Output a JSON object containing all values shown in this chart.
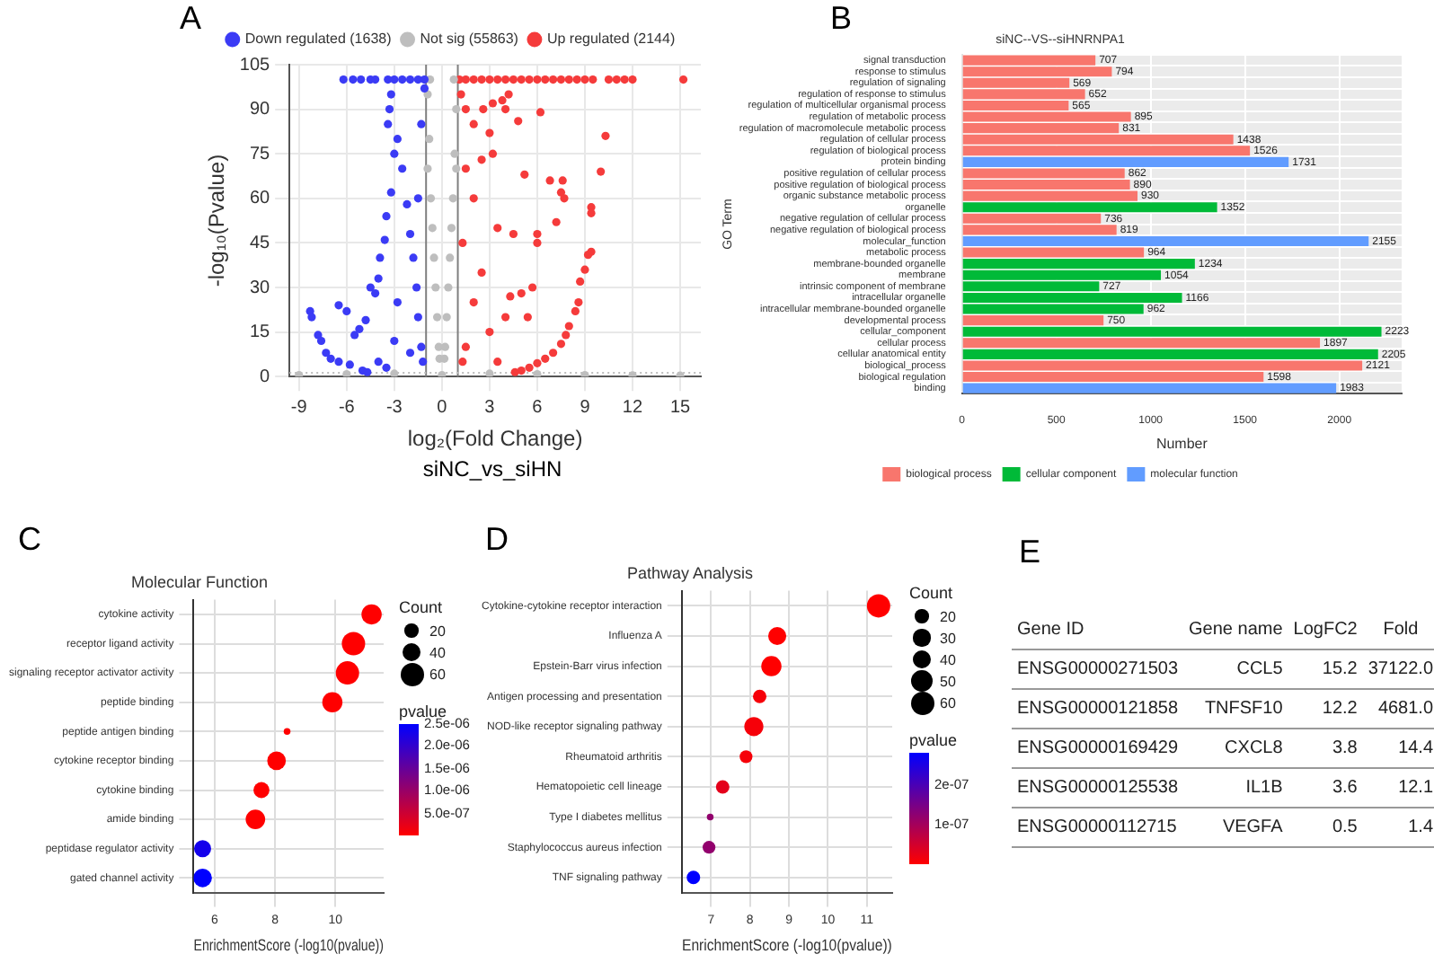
{
  "chart_data": [
    {
      "type": "scatter",
      "annotations": [
        "A",
        "siNC_vs_siHN"
      ],
      "xlabel": "log₂(Fold Change)",
      "ylabel": "-log₁₀(Pvalue)",
      "xlim": [
        -9.6,
        16.3
      ],
      "xticks": [
        -9,
        -6,
        -3,
        0,
        3,
        6,
        9,
        12,
        15
      ],
      "ylim": [
        0,
        105
      ],
      "yticks": [
        0,
        15,
        30,
        45,
        60,
        75,
        90,
        105
      ],
      "grid": true,
      "legend": "top",
      "marker": "circle",
      "ref_lines": [
        {
          "axis": "x",
          "value": -1,
          "color": "#7f7f7f",
          "line_style": "solid"
        },
        {
          "axis": "x",
          "value": 1,
          "color": "#7f7f7f",
          "line_style": "solid"
        },
        {
          "axis": "y",
          "value": 1.3,
          "color": "#bebebe",
          "line_style": "dotted"
        }
      ],
      "series": [
        {
          "name": "Down regulated (1638)",
          "color": "#3b3bf5",
          "x": [
            -6.2,
            -5.6,
            -5.1,
            -4.5,
            -4.2,
            -3.4,
            -3,
            -2.5,
            -2,
            -1.5,
            -1.1,
            -8.3,
            -8.2,
            -7.8,
            -7.6,
            -7.3,
            -7,
            -6.5,
            -6,
            -6.5,
            -5.8,
            -5,
            -4.7,
            -5.5,
            -5.2,
            -4.8,
            -4.5,
            -4.2,
            -4,
            -3.9,
            -3.6,
            -3.5,
            -3.2,
            -3,
            -3.4,
            -3.3,
            -3.2,
            -2.8,
            -2.5,
            -2.2,
            -2,
            -1.8,
            -1.6,
            -1.5,
            -1.3,
            -1.2,
            -1.5,
            -1.3,
            -1.1,
            -2.8,
            -3,
            -2,
            -4,
            -3.5
          ],
          "values": [
            100,
            100,
            100,
            100,
            100,
            100,
            100,
            100,
            100,
            100,
            100,
            22,
            20,
            14,
            12,
            8,
            6,
            24,
            22,
            5,
            4,
            2,
            1.5,
            14,
            16,
            19,
            30,
            28,
            33,
            40,
            46,
            54,
            62,
            75,
            85,
            90,
            95,
            80,
            70,
            58,
            48,
            40,
            30,
            20,
            10,
            5,
            60,
            85,
            97,
            25,
            12,
            8,
            5,
            3
          ]
        },
        {
          "name": "Not sig (55863)",
          "color": "#bebebe",
          "x": [
            -0.75,
            0.75,
            -0.9,
            0.9,
            -0.8,
            0.8,
            -0.7,
            0.7,
            -0.5,
            0.5,
            -0.3,
            0.3,
            -0.15,
            0.15,
            0,
            -0.9,
            0.9,
            -0.6,
            0.6,
            -0.4,
            0.4,
            -0.2,
            0.2,
            -9,
            -6,
            -3,
            3,
            6,
            9,
            12,
            15
          ],
          "values": [
            100,
            100,
            95,
            90,
            80,
            75,
            60,
            60,
            40,
            40,
            20,
            20,
            6,
            6,
            0.5,
            70,
            70,
            50,
            50,
            30,
            30,
            10,
            10,
            0.5,
            0.8,
            1,
            1,
            0.8,
            0.5,
            0.4,
            0.3
          ]
        },
        {
          "name": "Up regulated (2144)",
          "color": "#f53b3b",
          "x": [
            1.1,
            1.5,
            2,
            2.5,
            3,
            3.5,
            4,
            4.5,
            5,
            5.5,
            6,
            6.5,
            7,
            7.5,
            8,
            8.5,
            9,
            9.5,
            10.5,
            11,
            11.5,
            12,
            15.2,
            1.2,
            1.5,
            2,
            2.6,
            3.2,
            3.8,
            4.2,
            4,
            4.8,
            6.2,
            10.3,
            3,
            2.5,
            3.2,
            5.2,
            6.8,
            7.6,
            7.5,
            7.7,
            10,
            9.4,
            9.4,
            7.2,
            4.5,
            6,
            3.5,
            2,
            1.5,
            1.3,
            6,
            9.4,
            9.2,
            9,
            8.7,
            8.6,
            8.4,
            8,
            7.8,
            7.5,
            7,
            6.5,
            6,
            5.5,
            5,
            4.6,
            5.7,
            5,
            4,
            3,
            2,
            1.5,
            1.3,
            3.5,
            2.5,
            4.3,
            5.4
          ],
          "values": [
            100,
            100,
            100,
            100,
            100,
            100,
            100,
            100,
            100,
            100,
            100,
            100,
            100,
            100,
            100,
            100,
            100,
            100,
            100,
            100,
            100,
            100,
            100,
            95,
            90,
            85,
            90,
            92,
            93,
            95,
            90,
            86,
            89,
            81,
            82,
            73,
            75,
            68,
            66,
            66,
            62,
            60,
            69,
            57,
            55,
            52,
            48,
            48,
            50,
            60,
            70,
            45,
            45,
            42,
            41,
            36,
            32,
            25,
            22,
            17,
            14,
            11,
            8,
            6,
            4.5,
            3,
            2,
            1.5,
            30,
            28,
            20,
            15,
            25,
            10,
            5,
            5,
            35,
            27,
            20
          ]
        }
      ]
    },
    {
      "type": "bar",
      "orientation": "horizontal",
      "annotations": [
        "B"
      ],
      "title": "siNC--VS--siHNRNPA1",
      "xlabel": "Number",
      "ylabel": "GO Term",
      "xlim": [
        0,
        2330
      ],
      "xticks": [
        0,
        500,
        1000,
        1500,
        2000
      ],
      "grid": true,
      "legend": "bottom",
      "data_labels": true,
      "categories": [
        "signal transduction",
        "response to stimulus",
        "regulation of signaling",
        "regulation of response to stimulus",
        "regulation of multicellular organismal process",
        "regulation of metabolic process",
        "regulation of macromolecule metabolic process",
        "regulation of cellular process",
        "regulation of biological process",
        "protein binding",
        "positive regulation of cellular process",
        "positive regulation of biological process",
        "organic substance metabolic process",
        "organelle",
        "negative regulation of cellular process",
        "negative regulation of biological process",
        "molecular_function",
        "metabolic process",
        "membrane-bounded organelle",
        "membrane",
        "intrinsic component of membrane",
        "intracellular organelle",
        "intracellular membrane-bounded organelle",
        "developmental process",
        "cellular_component",
        "cellular process",
        "cellular anatomical entity",
        "biological_process",
        "biological regulation",
        "binding"
      ],
      "series": [
        {
          "name": "biological process",
          "color": "#f8766d",
          "values": [
            707,
            794,
            569,
            652,
            565,
            895,
            831,
            1438,
            1526,
            null,
            862,
            890,
            930,
            null,
            736,
            819,
            null,
            964,
            null,
            null,
            null,
            null,
            null,
            750,
            null,
            1897,
            null,
            2121,
            1598,
            null
          ]
        },
        {
          "name": "cellular component",
          "color": "#00ba38",
          "values": [
            null,
            null,
            null,
            null,
            null,
            null,
            null,
            null,
            null,
            null,
            null,
            null,
            null,
            1352,
            null,
            null,
            null,
            null,
            1234,
            1054,
            727,
            1166,
            962,
            null,
            2223,
            null,
            2205,
            null,
            null,
            null
          ]
        },
        {
          "name": "molecular function",
          "color": "#619cff",
          "values": [
            null,
            null,
            null,
            null,
            null,
            null,
            null,
            null,
            null,
            1731,
            null,
            null,
            null,
            null,
            null,
            null,
            2155,
            null,
            null,
            null,
            null,
            null,
            null,
            null,
            null,
            null,
            null,
            null,
            null,
            1983
          ]
        }
      ]
    },
    {
      "type": "bubble",
      "orientation": "horizontal",
      "annotations": [
        "C"
      ],
      "title": "Molecular Function",
      "xlabel": "EnrichmentScore (-log10(pvalue))",
      "xlim": [
        5.3,
        11.6
      ],
      "xticks": [
        6,
        8,
        10
      ],
      "grid": true,
      "legend_title": "Count",
      "size_legend": [
        20,
        40,
        60
      ],
      "clabel": "pvalue",
      "clim": [
        0,
        2.5e-06
      ],
      "cticks": [
        {
          "value": 5e-07,
          "label": "5.0e-07"
        },
        {
          "value": 1e-06,
          "label": "1.0e-06"
        },
        {
          "value": 1.5e-06,
          "label": "1.5e-06"
        },
        {
          "value": 2e-06,
          "label": "2.0e-06"
        },
        {
          "value": 2.5e-06,
          "label": "2.5e-06"
        }
      ],
      "categories": [
        "cytokine activity",
        "receptor ligand activity",
        "signaling receptor activator activity",
        "peptide binding",
        "peptide antigen binding",
        "cytokine receptor binding",
        "cytokine binding",
        "amide binding",
        "peptidase regulator activity",
        "gated channel activity"
      ],
      "values": [
        11.2,
        10.6,
        10.4,
        9.9,
        8.4,
        8.05,
        7.55,
        7.35,
        5.6,
        5.6
      ],
      "sizes": [
        45,
        60,
        60,
        45,
        5,
        38,
        28,
        42,
        32,
        38
      ],
      "cvalues": [
        0,
        0,
        0,
        0,
        0,
        0,
        0,
        0,
        2.3e-06,
        2.5e-06
      ]
    },
    {
      "type": "bubble",
      "orientation": "horizontal",
      "annotations": [
        "D"
      ],
      "title": "Pathway Analysis",
      "xlabel": "EnrichmentScore (-log10(pvalue))",
      "xlim": [
        6.25,
        11.65
      ],
      "xticks": [
        7,
        8,
        9,
        10,
        11
      ],
      "grid": true,
      "legend_title": "Count",
      "size_legend": [
        20,
        30,
        40,
        50,
        60
      ],
      "clabel": "pvalue",
      "clim": [
        0,
        2.8e-07
      ],
      "cticks": [
        {
          "value": 1e-07,
          "label": "1e-07"
        },
        {
          "value": 2e-07,
          "label": "2e-07"
        }
      ],
      "categories": [
        "Cytokine-cytokine receptor interaction",
        "Influenza A",
        "Epstein-Barr virus infection",
        "Antigen processing and presentation",
        "NOD-like receptor signaling pathway",
        "Rheumatoid arthritis",
        "Hematopoietic cell lineage",
        "Type I diabetes mellitus",
        "Staphylococcus aureus infection",
        "TNF signaling pathway"
      ],
      "values": [
        11.3,
        8.7,
        8.55,
        8.25,
        8.1,
        7.9,
        7.3,
        6.98,
        6.95,
        6.55
      ],
      "sizes": [
        60,
        36,
        45,
        20,
        40,
        18,
        20,
        5,
        18,
        20
      ],
      "cvalues": [
        0,
        0,
        0,
        1e-08,
        1e-08,
        1e-08,
        3e-08,
        1.2e-07,
        1.2e-07,
        2.8e-07
      ]
    },
    {
      "type": "other",
      "annotations": [
        "E"
      ],
      "categories": [
        "Gene ID",
        "Gene name",
        "LogFC2",
        "Fold"
      ],
      "cell_labels": [
        [
          "ENSG00000271503",
          "CCL5",
          "15.2",
          "37122.0"
        ],
        [
          "ENSG00000121858",
          "TNFSF10",
          "12.2",
          "4681.0"
        ],
        [
          "ENSG00000169429",
          "CXCL8",
          "3.8",
          "14.4"
        ],
        [
          "ENSG00000125538",
          "IL1B",
          "3.6",
          "12.1"
        ],
        [
          "ENSG00000112715",
          "VEGFA",
          "0.5",
          "1.4"
        ]
      ]
    }
  ]
}
